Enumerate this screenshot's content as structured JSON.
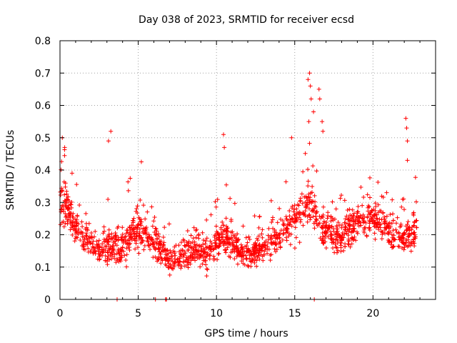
{
  "chart_data": {
    "type": "scatter",
    "title": "Day 038 of 2023, SRMTID for receiver ecsd",
    "xlabel": "GPS time / hours",
    "ylabel": "SRMTID / TECUs",
    "xlim": [
      0,
      24
    ],
    "ylim": [
      0,
      0.8
    ],
    "x_ticks": [
      "0",
      "5",
      "10",
      "15",
      "20"
    ],
    "y_ticks": [
      "0",
      "0.1",
      "0.2",
      "0.3",
      "0.4",
      "0.5",
      "0.6",
      "0.7",
      "0.8"
    ],
    "grid": true,
    "marker": "+",
    "color": "#ff0000",
    "series_description": "Dense scatter of SRMTID values vs GPS time; approximate hourly envelope sampled below",
    "profile": {
      "hours": [
        0,
        0.5,
        1,
        1.5,
        2,
        2.5,
        3,
        3.5,
        4,
        4.5,
        5,
        5.5,
        6,
        6.5,
        7,
        7.5,
        8,
        8.5,
        9,
        9.5,
        10,
        10.5,
        11,
        11.5,
        12,
        12.5,
        13,
        13.5,
        14,
        14.5,
        15,
        15.5,
        16,
        16.5,
        17,
        17.5,
        18,
        18.5,
        19,
        19.5,
        20,
        20.5,
        21,
        21.5,
        22,
        22.5,
        23
      ],
      "typical": [
        0.3,
        0.28,
        0.22,
        0.2,
        0.17,
        0.15,
        0.16,
        0.18,
        0.16,
        0.19,
        0.22,
        0.2,
        0.18,
        0.15,
        0.13,
        0.12,
        0.14,
        0.16,
        0.15,
        0.14,
        0.18,
        0.2,
        0.17,
        0.15,
        0.14,
        0.15,
        0.16,
        0.18,
        0.2,
        0.22,
        0.25,
        0.28,
        0.3,
        0.24,
        0.22,
        0.2,
        0.19,
        0.22,
        0.24,
        0.25,
        0.26,
        0.23,
        0.21,
        0.2,
        0.19,
        0.2,
        0.24
      ],
      "spread": [
        0.12,
        0.1,
        0.09,
        0.08,
        0.08,
        0.07,
        0.1,
        0.12,
        0.1,
        0.1,
        0.11,
        0.1,
        0.1,
        0.08,
        0.08,
        0.07,
        0.08,
        0.08,
        0.08,
        0.08,
        0.1,
        0.1,
        0.08,
        0.07,
        0.07,
        0.07,
        0.07,
        0.08,
        0.1,
        0.1,
        0.12,
        0.12,
        0.14,
        0.12,
        0.1,
        0.1,
        0.09,
        0.1,
        0.1,
        0.1,
        0.1,
        0.09,
        0.09,
        0.09,
        0.08,
        0.1,
        0.08
      ]
    },
    "peaks": [
      {
        "x": 0.15,
        "y": 0.5
      },
      {
        "x": 0.3,
        "y": 0.47
      },
      {
        "x": 3.25,
        "y": 0.52
      },
      {
        "x": 3.1,
        "y": 0.49
      },
      {
        "x": 10.45,
        "y": 0.51
      },
      {
        "x": 10.5,
        "y": 0.47
      },
      {
        "x": 14.8,
        "y": 0.5
      },
      {
        "x": 15.85,
        "y": 0.68
      },
      {
        "x": 15.95,
        "y": 0.7
      },
      {
        "x": 16.0,
        "y": 0.66
      },
      {
        "x": 16.05,
        "y": 0.62
      },
      {
        "x": 15.9,
        "y": 0.55
      },
      {
        "x": 16.2,
        "y": 0.58
      },
      {
        "x": 16.55,
        "y": 0.65
      },
      {
        "x": 16.6,
        "y": 0.62
      },
      {
        "x": 16.75,
        "y": 0.55
      },
      {
        "x": 16.8,
        "y": 0.52
      },
      {
        "x": 22.1,
        "y": 0.56
      },
      {
        "x": 22.15,
        "y": 0.53
      },
      {
        "x": 22.2,
        "y": 0.49
      },
      {
        "x": 22.2,
        "y": 0.43
      }
    ],
    "zeros": [
      3.65,
      6.1,
      6.75,
      6.8,
      16.25
    ]
  }
}
